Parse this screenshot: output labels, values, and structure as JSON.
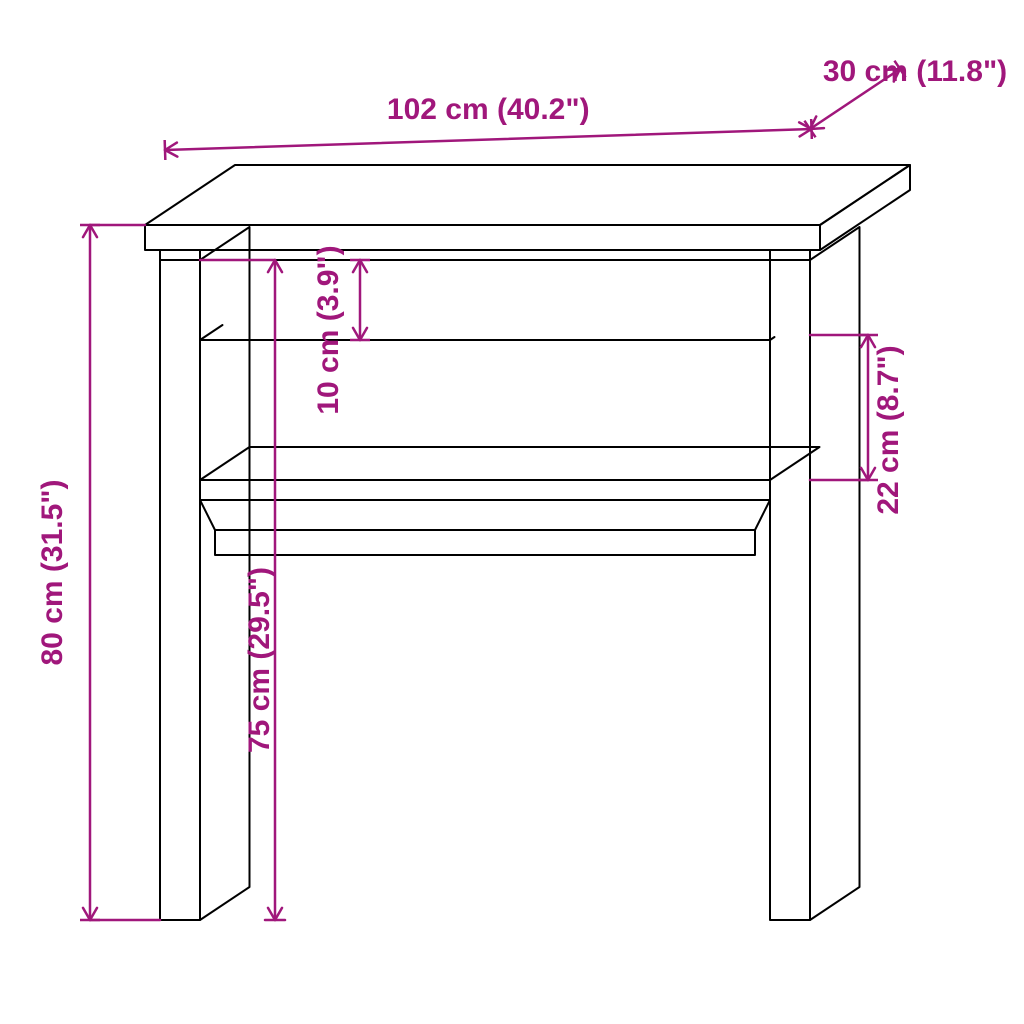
{
  "diagram": {
    "type": "technical-drawing",
    "background_color": "#ffffff",
    "outline_color": "#000000",
    "outline_width": 2,
    "dim_color": "#a0177b",
    "dim_width": 2.5,
    "label_font_size": 30,
    "label_font_weight": 600,
    "labels": {
      "width": "102 cm (40.2\")",
      "depth": "30 cm (11.8\")",
      "height_total": "80 cm (31.5\")",
      "height_inner": "75 cm (29.5\")",
      "apron": "10 cm (3.9\")",
      "shelf_gap": "22 cm (8.7\")"
    },
    "arrow_len": 14
  }
}
